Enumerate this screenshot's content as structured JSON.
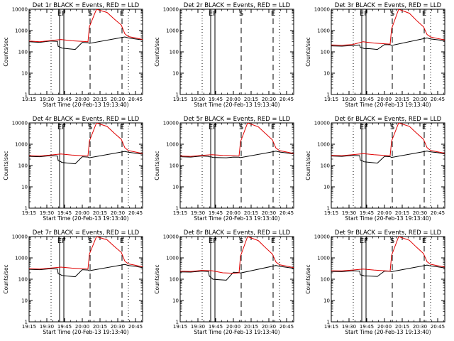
{
  "colors": {
    "events": "#000000",
    "lld": "#e00000",
    "background": "#ffffff"
  },
  "chart_data": {
    "type": "line",
    "ylim": [
      1,
      10000
    ],
    "yscale": "log",
    "y_ticks": [
      1,
      10,
      100,
      1000,
      10000
    ],
    "y_tick_labels": [
      "1",
      "10",
      "100",
      "1000",
      "10000"
    ],
    "xlim": [
      19.25,
      20.85
    ],
    "x_ticks": [
      19.25,
      19.5,
      19.75,
      20.0,
      20.25,
      20.5,
      20.75
    ],
    "x_tick_labels": [
      "19:15",
      "19:30",
      "19:45",
      "20:00",
      "20:15",
      "20:30",
      "20:45"
    ],
    "x_axis_label": "Start Time (20-Feb-13 19:13:40)",
    "y_axis_label": "Counts/sec",
    "event_lines": [
      {
        "time": 19.56,
        "style": "dotted",
        "label": ""
      },
      {
        "time": 19.68,
        "style": "solid",
        "label": "E"
      },
      {
        "time": 19.74,
        "style": "solid",
        "label": "F"
      },
      {
        "time": 20.11,
        "style": "dashed",
        "label": "S"
      },
      {
        "time": 20.56,
        "style": "dashed",
        "label": "E"
      },
      {
        "time": 20.65,
        "style": "dotted",
        "label": ""
      }
    ],
    "panels": [
      {
        "title": "Det 1r BLACK = Events, RED = LLD",
        "events": {
          "x": [
            19.25,
            19.4,
            19.55,
            19.65,
            19.66,
            19.7,
            19.71,
            19.8,
            19.9,
            20.0,
            20.08,
            20.09,
            20.1,
            20.6,
            20.65,
            20.75,
            20.85
          ],
          "y": [
            300,
            280,
            320,
            310,
            180,
            160,
            150,
            140,
            130,
            280,
            270,
            260,
            250,
            500,
            450,
            400,
            360
          ]
        },
        "lld": {
          "x": [
            19.25,
            19.4,
            19.55,
            19.7,
            19.85,
            20.0,
            20.08,
            20.1,
            20.2,
            20.35,
            20.45,
            20.55,
            20.6,
            20.65,
            20.75,
            20.85
          ],
          "y": [
            320,
            300,
            340,
            380,
            330,
            310,
            300,
            1500,
            10000,
            7000,
            3500,
            1800,
            700,
            520,
            450,
            380
          ]
        }
      },
      {
        "title": "Det 2r BLACK = Events, RED = LLD",
        "events": {
          "x": [],
          "y": []
        },
        "lld": {
          "x": [],
          "y": []
        }
      },
      {
        "title": "Det 3r BLACK = Events, RED = LLD",
        "events": {
          "x": [
            19.25,
            19.4,
            19.55,
            19.65,
            19.66,
            19.7,
            19.71,
            19.8,
            19.9,
            20.0,
            20.08,
            20.09,
            20.1,
            20.6,
            20.65,
            20.75,
            20.85
          ],
          "y": [
            190,
            185,
            200,
            210,
            160,
            150,
            145,
            140,
            130,
            220,
            215,
            210,
            200,
            450,
            400,
            370,
            330
          ]
        },
        "lld": {
          "x": [
            19.25,
            19.4,
            19.55,
            19.7,
            19.85,
            20.0,
            20.08,
            20.1,
            20.2,
            20.35,
            20.45,
            20.55,
            20.6,
            20.65,
            20.75,
            20.85
          ],
          "y": [
            210,
            205,
            220,
            300,
            260,
            240,
            230,
            1200,
            10000,
            6500,
            3000,
            1500,
            650,
            500,
            420,
            360
          ]
        }
      },
      {
        "title": "Det 4r BLACK = Events, RED = LLD",
        "events": {
          "x": [
            19.25,
            19.4,
            19.55,
            19.65,
            19.66,
            19.7,
            19.71,
            19.8,
            19.9,
            20.0,
            20.08,
            20.09,
            20.1,
            20.6,
            20.65,
            20.75,
            20.85
          ],
          "y": [
            270,
            260,
            290,
            280,
            170,
            150,
            140,
            130,
            120,
            260,
            250,
            240,
            230,
            460,
            420,
            380,
            340
          ]
        },
        "lld": {
          "x": [
            19.25,
            19.4,
            19.55,
            19.7,
            19.85,
            20.0,
            20.08,
            20.1,
            20.2,
            20.35,
            20.45,
            20.55,
            20.6,
            20.65,
            20.75,
            20.85
          ],
          "y": [
            290,
            280,
            310,
            350,
            310,
            290,
            280,
            1400,
            10000,
            6800,
            3300,
            1700,
            680,
            500,
            430,
            370
          ]
        }
      },
      {
        "title": "Det 5r BLACK = Events, RED = LLD",
        "events": {
          "x": [
            19.25,
            19.4,
            19.55,
            19.65,
            19.66,
            19.7,
            19.71,
            19.8,
            19.9,
            20.0,
            20.08,
            20.09,
            20.1,
            20.6,
            20.65,
            20.75,
            20.85
          ],
          "y": [
            260,
            250,
            280,
            270,
            260,
            250,
            240,
            235,
            230,
            250,
            245,
            240,
            235,
            470,
            430,
            390,
            350
          ]
        },
        "lld": {
          "x": [
            19.25,
            19.4,
            19.55,
            19.7,
            19.85,
            20.0,
            20.08,
            20.1,
            20.2,
            20.35,
            20.45,
            20.55,
            20.6,
            20.65,
            20.75,
            20.85
          ],
          "y": [
            280,
            270,
            300,
            320,
            300,
            290,
            280,
            1300,
            10000,
            6600,
            3200,
            1600,
            660,
            500,
            430,
            370
          ]
        }
      },
      {
        "title": "Det 6r BLACK = Events, RED = LLD",
        "events": {
          "x": [
            19.25,
            19.4,
            19.55,
            19.65,
            19.66,
            19.7,
            19.71,
            19.8,
            19.9,
            20.0,
            20.08,
            20.09,
            20.1,
            20.6,
            20.65,
            20.75,
            20.85
          ],
          "y": [
            280,
            270,
            300,
            290,
            180,
            160,
            150,
            140,
            130,
            270,
            260,
            250,
            240,
            480,
            440,
            400,
            350
          ]
        },
        "lld": {
          "x": [
            19.25,
            19.4,
            19.55,
            19.7,
            19.85,
            20.0,
            20.08,
            20.1,
            20.2,
            20.35,
            20.45,
            20.55,
            20.6,
            20.65,
            20.75,
            20.85
          ],
          "y": [
            300,
            290,
            320,
            360,
            320,
            300,
            290,
            1400,
            10000,
            6900,
            3400,
            1700,
            690,
            510,
            440,
            380
          ]
        }
      },
      {
        "title": "Det 7r BLACK = Events, RED = LLD",
        "events": {
          "x": [
            19.25,
            19.4,
            19.55,
            19.65,
            19.66,
            19.7,
            19.71,
            19.8,
            19.9,
            20.0,
            20.08,
            20.09,
            20.1,
            20.6,
            20.65,
            20.75,
            20.85
          ],
          "y": [
            290,
            280,
            310,
            300,
            180,
            160,
            150,
            140,
            130,
            280,
            270,
            260,
            250,
            490,
            440,
            400,
            350
          ]
        },
        "lld": {
          "x": [
            19.25,
            19.4,
            19.55,
            19.7,
            19.85,
            20.0,
            20.08,
            20.1,
            20.2,
            20.35,
            20.45,
            20.55,
            20.6,
            20.65,
            20.75,
            20.85
          ],
          "y": [
            310,
            300,
            330,
            370,
            330,
            310,
            300,
            1500,
            10000,
            7000,
            3500,
            1800,
            700,
            520,
            450,
            380
          ]
        }
      },
      {
        "title": "Det 8r BLACK = Events, RED = LLD",
        "events": {
          "x": [
            19.25,
            19.4,
            19.55,
            19.65,
            19.66,
            19.7,
            19.71,
            19.8,
            19.9,
            20.0,
            20.08,
            20.09,
            20.1,
            20.6,
            20.65,
            20.75,
            20.85
          ],
          "y": [
            220,
            215,
            240,
            230,
            140,
            110,
            100,
            95,
            90,
            210,
            205,
            200,
            195,
            440,
            400,
            360,
            320
          ]
        },
        "lld": {
          "x": [
            19.25,
            19.4,
            19.55,
            19.7,
            19.85,
            20.0,
            20.08,
            20.1,
            20.2,
            20.35,
            20.45,
            20.55,
            20.6,
            20.65,
            20.75,
            20.85
          ],
          "y": [
            240,
            230,
            260,
            250,
            200,
            190,
            200,
            1200,
            10000,
            6500,
            3100,
            1500,
            640,
            480,
            410,
            350
          ]
        }
      },
      {
        "title": "Det 9r BLACK = Events, RED = LLD",
        "events": {
          "x": [
            19.25,
            19.4,
            19.55,
            19.65,
            19.66,
            19.7,
            19.71,
            19.8,
            19.9,
            20.0,
            20.08,
            20.09,
            20.1,
            20.6,
            20.65,
            20.75,
            20.85
          ],
          "y": [
            230,
            225,
            250,
            240,
            160,
            150,
            145,
            140,
            135,
            240,
            235,
            230,
            225,
            460,
            420,
            380,
            340
          ]
        },
        "lld": {
          "x": [
            19.25,
            19.4,
            19.55,
            19.7,
            19.85,
            20.0,
            20.08,
            20.1,
            20.2,
            20.35,
            20.45,
            20.55,
            20.6,
            20.65,
            20.75,
            20.85
          ],
          "y": [
            250,
            245,
            270,
            300,
            270,
            250,
            240,
            1300,
            10000,
            6700,
            3200,
            1600,
            660,
            500,
            430,
            370
          ]
        }
      }
    ]
  }
}
